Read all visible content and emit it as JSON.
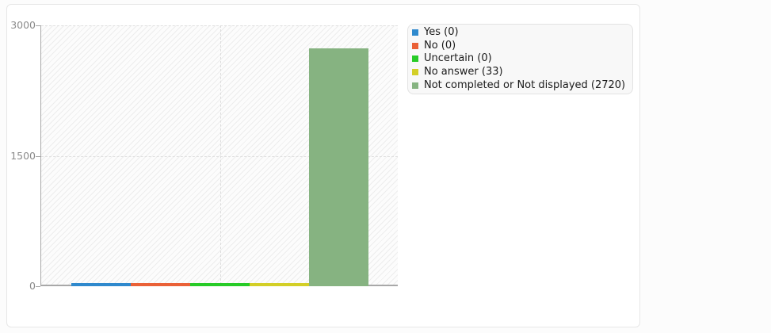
{
  "chart_data": {
    "type": "bar",
    "title": "",
    "xlabel": "",
    "ylabel": "",
    "categories": [
      ""
    ],
    "series": [
      {
        "name": "Yes",
        "value": 0,
        "color": "#2f89cd",
        "legend_label": "Yes (0)"
      },
      {
        "name": "No",
        "value": 0,
        "color": "#ea6137",
        "legend_label": "No (0)"
      },
      {
        "name": "Uncertain",
        "value": 0,
        "color": "#27cb27",
        "legend_label": "Uncertain (0)"
      },
      {
        "name": "No answer",
        "value": 33,
        "color": "#d3cf27",
        "legend_label": "No answer (33)"
      },
      {
        "name": "Not completed or Not displayed",
        "value": 2720,
        "color": "#86b381",
        "legend_label": "Not completed or Not displayed (2720)"
      }
    ],
    "ylim": [
      0,
      3000
    ],
    "yticks": [
      0,
      1500,
      3000
    ],
    "legend_position": "outside-top-right",
    "grid": "dashed",
    "plot_background": "diagonal-hatch"
  },
  "colors": {
    "axis": "#a8a8a8",
    "tick_label": "#8a8a8a",
    "grid": "#e0e0e0",
    "card_bg": "#ffffff",
    "card_border": "#e7e7e7",
    "legend_bg": "#f8f8f8",
    "legend_border": "#e3e3e3",
    "page_bg": "#fcfcfc"
  }
}
